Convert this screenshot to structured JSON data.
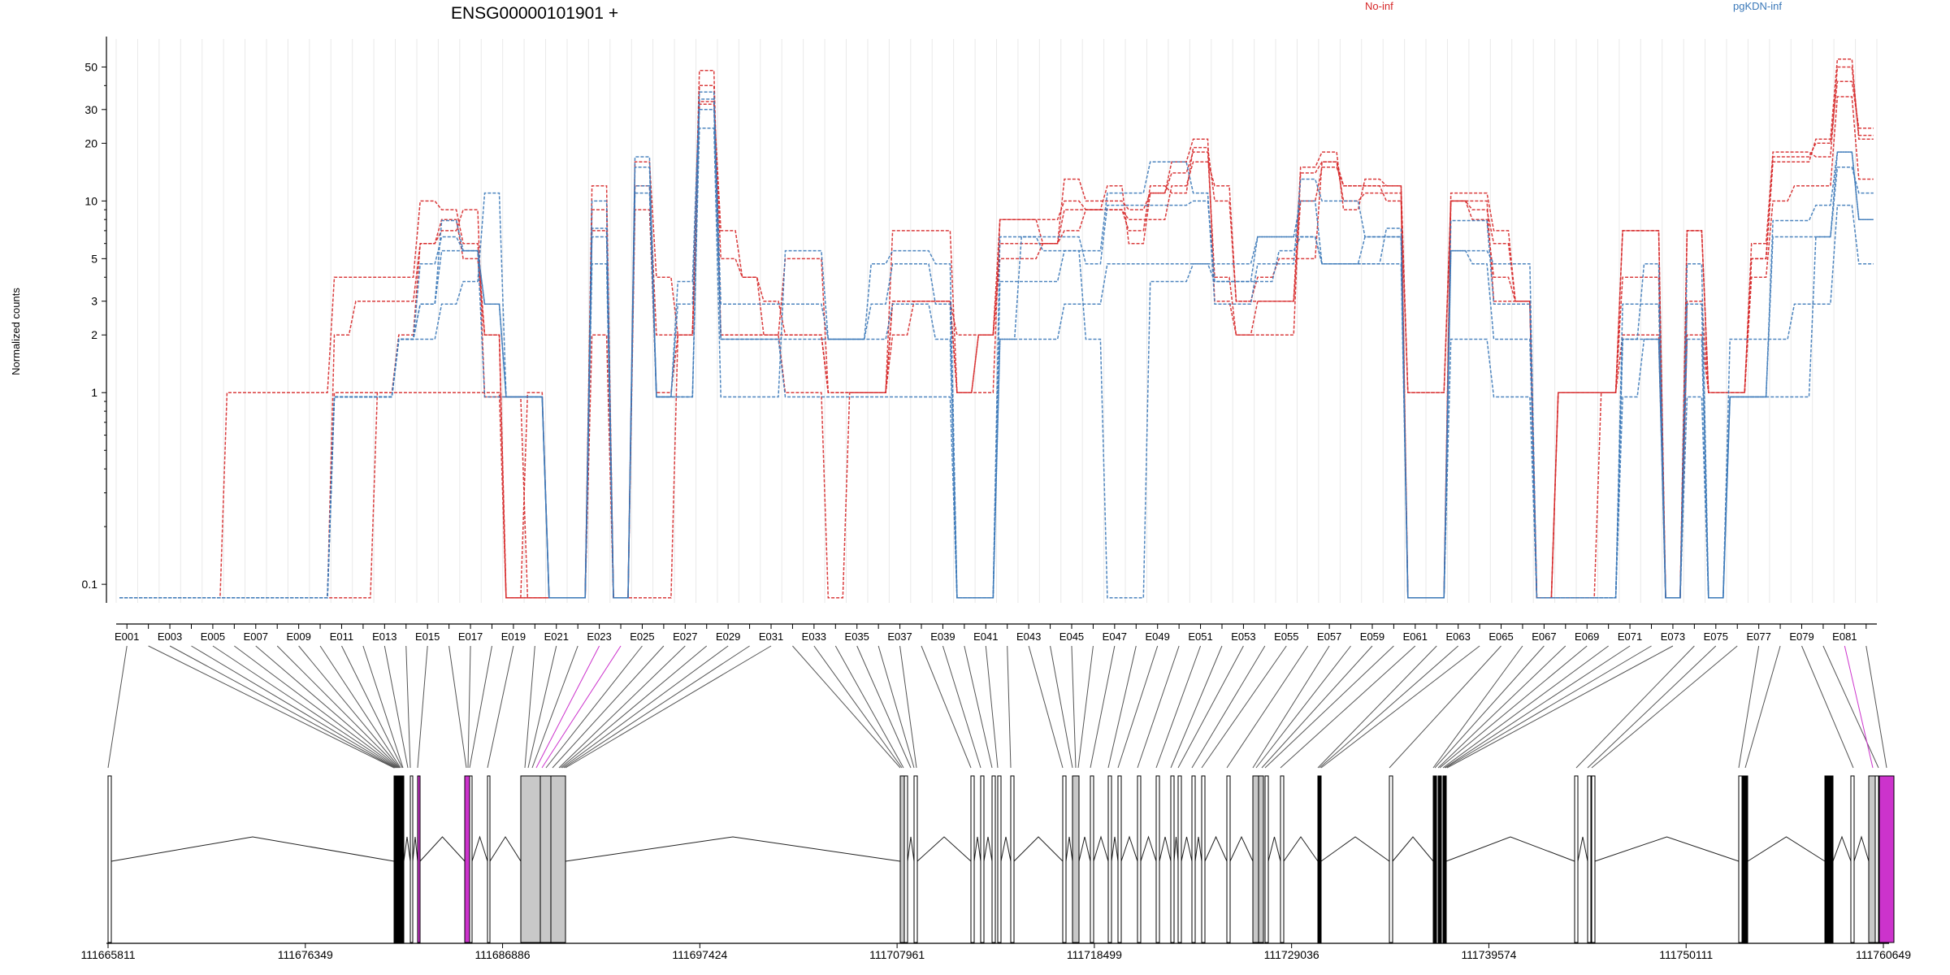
{
  "chart_data": {
    "type": "line",
    "title": "ENSG00000101901 +",
    "ylabel": "Normalized counts",
    "yscale": "log",
    "ylim": [
      0.08,
      70
    ],
    "yticks": [
      {
        "value": 0.1,
        "label": "0.1"
      },
      {
        "value": 1,
        "label": "1"
      },
      {
        "value": 2,
        "label": "2"
      },
      {
        "value": 3,
        "label": "3"
      },
      {
        "value": 5,
        "label": "5"
      },
      {
        "value": 10,
        "label": "10"
      },
      {
        "value": 20,
        "label": "20"
      },
      {
        "value": 30,
        "label": "30"
      },
      {
        "value": 50,
        "label": "50"
      }
    ],
    "legend": [
      {
        "label": "No-inf",
        "color": "#d62728"
      },
      {
        "label": "pgKDN-inf",
        "color": "#3a78b8"
      }
    ],
    "categories": [
      "E001",
      "E002",
      "E003",
      "E004",
      "E005",
      "E006",
      "E007",
      "E008",
      "E009",
      "E010",
      "E011",
      "E012",
      "E013",
      "E014",
      "E015",
      "E016",
      "E017",
      "E018",
      "E019",
      "E020",
      "E021",
      "E022",
      "E023",
      "E024",
      "E025",
      "E026",
      "E027",
      "E028",
      "E029",
      "E030",
      "E031",
      "E032",
      "E033",
      "E034",
      "E035",
      "E036",
      "E037",
      "E038",
      "E039",
      "E040",
      "E041",
      "E042",
      "E043",
      "E044",
      "E045",
      "E046",
      "E047",
      "E048",
      "E049",
      "E050",
      "E051",
      "E052",
      "E053",
      "E054",
      "E055",
      "E056",
      "E057",
      "E058",
      "E059",
      "E060",
      "E061",
      "E062",
      "E063",
      "E064",
      "E065",
      "E066",
      "E067",
      "E068",
      "E069",
      "E070",
      "E071",
      "E072",
      "E073",
      "E074",
      "E075",
      "E076",
      "E077",
      "E078",
      "E079",
      "E080",
      "E081",
      "E082"
    ],
    "series": [
      {
        "group": "No-inf",
        "values": [
          0.085,
          0.085,
          0.085,
          0.085,
          0.085,
          0.085,
          0.085,
          0.085,
          0.085,
          0.085,
          1,
          1,
          1,
          1,
          1,
          1,
          1,
          1,
          0.085,
          0.085,
          0.085,
          0.085,
          2,
          0.085,
          0.085,
          0.085,
          2,
          48,
          2,
          2,
          2,
          1,
          1,
          0.085,
          1,
          1,
          7,
          7,
          7,
          1,
          2,
          5,
          5,
          6,
          7,
          9,
          9,
          8,
          8,
          12,
          16,
          12,
          3,
          4,
          5,
          5,
          16,
          12,
          12,
          10,
          1,
          1,
          10,
          9,
          6,
          3,
          0.085,
          1,
          1,
          1,
          7,
          7,
          0.085,
          7,
          1,
          1,
          5,
          17,
          17,
          20,
          42,
          24
        ]
      },
      {
        "group": "No-inf",
        "values": [
          0.085,
          0.085,
          0.085,
          0.085,
          0.085,
          1,
          1,
          1,
          1,
          1,
          4,
          4,
          4,
          4,
          10,
          9,
          6,
          2,
          0.085,
          1,
          0.085,
          0.085,
          12,
          0.085,
          16,
          4,
          2,
          40,
          2,
          2,
          2,
          5,
          5,
          1,
          1,
          1,
          3,
          3,
          3,
          1,
          2,
          8,
          8,
          8,
          10,
          9,
          12,
          6,
          11,
          16,
          21,
          3,
          2,
          3,
          3,
          15,
          18,
          9,
          13,
          12,
          0.085,
          0.085,
          11,
          11,
          7,
          3,
          0.085,
          0.085,
          0.085,
          1,
          4,
          4,
          0.085,
          3,
          1,
          1,
          5,
          16,
          16,
          21,
          55,
          21
        ]
      },
      {
        "group": "No-inf",
        "values": [
          0.085,
          0.085,
          0.085,
          0.085,
          0.085,
          0.085,
          0.085,
          0.085,
          0.085,
          0.085,
          2,
          3,
          3,
          3,
          6,
          8,
          5,
          2,
          0.085,
          0.085,
          0.085,
          0.085,
          9,
          0.085,
          9,
          1,
          2,
          33,
          5,
          4,
          3,
          2,
          2,
          1,
          1,
          1,
          2,
          3,
          3,
          2,
          2,
          6,
          6,
          6,
          9,
          9,
          9,
          7,
          12,
          11,
          19,
          10,
          3,
          3,
          3,
          10,
          15,
          12,
          12,
          12,
          1,
          1,
          10,
          10,
          3,
          3,
          0.085,
          1,
          1,
          1,
          2,
          2,
          0.085,
          2,
          1,
          1,
          4,
          10,
          12,
          12,
          35,
          13
        ]
      },
      {
        "group": "No-inf",
        "values": [
          0.085,
          0.085,
          0.085,
          0.085,
          0.085,
          0.085,
          0.085,
          0.085,
          0.085,
          0.085,
          0.085,
          0.085,
          1,
          2,
          6,
          7,
          9,
          0.95,
          0.95,
          0.085,
          0.085,
          0.085,
          7,
          0.085,
          12,
          2,
          2,
          32,
          7,
          4,
          2,
          2,
          2,
          1,
          1,
          1,
          3,
          3,
          3,
          1,
          1,
          8,
          8,
          6,
          13,
          10,
          10,
          9,
          11,
          14,
          18,
          4,
          2,
          2,
          2,
          14,
          16,
          10,
          11,
          11,
          0.085,
          0.085,
          10,
          8,
          4,
          3,
          0.085,
          1,
          1,
          1,
          7,
          7,
          0.085,
          7,
          1,
          1,
          6,
          18,
          18,
          17,
          50,
          22
        ]
      },
      {
        "group": "pgKDN-inf",
        "values": [
          0.085,
          0.085,
          0.085,
          0.085,
          0.085,
          0.085,
          0.085,
          0.085,
          0.085,
          0.085,
          0.95,
          0.95,
          0.95,
          1.9,
          1.9,
          2.9,
          3.8,
          11,
          0.95,
          0.95,
          0.085,
          0.085,
          6.5,
          0.085,
          17,
          0.95,
          0.95,
          34,
          1.9,
          1.9,
          1.9,
          0.95,
          0.95,
          0.95,
          0.95,
          0.95,
          0.95,
          0.95,
          0.95,
          0.085,
          0.085,
          1.9,
          1.9,
          1.9,
          2.9,
          2.9,
          4.7,
          4.7,
          4.7,
          4.7,
          4.7,
          3.8,
          3.8,
          6.5,
          6.5,
          6.5,
          4.7,
          4.7,
          4.7,
          7.2,
          0.085,
          0.085,
          1.9,
          1.9,
          0.95,
          0.95,
          0.085,
          0.085,
          0.085,
          0.085,
          0.95,
          1.9,
          0.085,
          0.95,
          0.085,
          1.9,
          1.9,
          1.9,
          2.9,
          2.9,
          9.5,
          4.7
        ]
      },
      {
        "group": "pgKDN-inf",
        "values": [
          0.085,
          0.085,
          0.085,
          0.085,
          0.085,
          0.085,
          0.085,
          0.085,
          0.085,
          0.085,
          0.95,
          0.95,
          0.95,
          1.9,
          2.9,
          7.9,
          5.5,
          0.95,
          0.95,
          0.95,
          0.085,
          0.085,
          4.7,
          0.085,
          11,
          0.95,
          0.95,
          24,
          0.95,
          0.95,
          0.95,
          5.5,
          5.5,
          1.9,
          1.9,
          4.7,
          5.5,
          5.5,
          4.7,
          0.085,
          0.085,
          6.5,
          6.5,
          5.5,
          5.5,
          1.9,
          0.085,
          0.085,
          3.8,
          3.8,
          4.7,
          4.7,
          4.7,
          6.5,
          6.5,
          10,
          4.7,
          4.7,
          6.5,
          6.5,
          0.085,
          0.085,
          5.5,
          5.5,
          4.7,
          4.7,
          0.085,
          0.085,
          0.085,
          0.085,
          1.9,
          4.7,
          0.085,
          4.7,
          0.085,
          0.95,
          0.95,
          0.95,
          0.95,
          6.5,
          15,
          11
        ]
      },
      {
        "group": "pgKDN-inf",
        "values": [
          0.085,
          0.085,
          0.085,
          0.085,
          0.085,
          0.085,
          0.085,
          0.085,
          0.085,
          0.085,
          0.95,
          0.95,
          0.95,
          1.9,
          4.7,
          6.5,
          5.5,
          2.9,
          0.95,
          0.95,
          0.085,
          0.085,
          10,
          0.085,
          15,
          0.95,
          3.8,
          37,
          2.9,
          2.9,
          2.9,
          2.9,
          2.9,
          1.9,
          1.9,
          2.9,
          4.7,
          4.7,
          2.9,
          0.085,
          0.085,
          3.8,
          3.8,
          3.8,
          5.5,
          5.5,
          11,
          11,
          16,
          16,
          11,
          2.9,
          2.9,
          4.7,
          4.7,
          13,
          10,
          10,
          6.5,
          6.5,
          0.085,
          0.085,
          7.9,
          7.9,
          2.9,
          2.9,
          0.085,
          0.085,
          0.085,
          0.085,
          2.9,
          2.9,
          0.085,
          2.9,
          0.085,
          0.95,
          0.95,
          7.9,
          7.9,
          9.5,
          18,
          8
        ]
      },
      {
        "group": "pgKDN-inf",
        "values": [
          0.085,
          0.085,
          0.085,
          0.085,
          0.085,
          0.085,
          0.085,
          0.085,
          0.085,
          0.085,
          0.95,
          0.95,
          0.95,
          1.9,
          2.9,
          5.5,
          5.5,
          2.9,
          0.95,
          0.95,
          0.085,
          0.085,
          7.2,
          0.085,
          12,
          0.95,
          2.9,
          30,
          1.9,
          1.9,
          1.9,
          1.9,
          1.9,
          1.9,
          1.9,
          1.9,
          2.9,
          2.9,
          1.9,
          0.085,
          0.085,
          1.9,
          6.5,
          6.5,
          6.5,
          4.7,
          9.5,
          9.5,
          9.5,
          9.5,
          10,
          3.8,
          3.8,
          3.8,
          5.5,
          6.5,
          4.7,
          4.7,
          4.7,
          4.7,
          0.085,
          0.085,
          5.5,
          4.7,
          1.9,
          1.9,
          0.085,
          0.085,
          0.085,
          0.085,
          1.9,
          1.9,
          0.085,
          1.9,
          0.085,
          0.95,
          0.95,
          6.5,
          6.5,
          6.5,
          18,
          8
        ]
      }
    ],
    "genomic_axis": {
      "ticks": [
        "111665811",
        "111676349",
        "111686886",
        "111697424",
        "111707961",
        "111718499",
        "111729036",
        "111739574",
        "111750111",
        "111760649"
      ],
      "range": [
        111665811,
        111760649
      ]
    }
  }
}
